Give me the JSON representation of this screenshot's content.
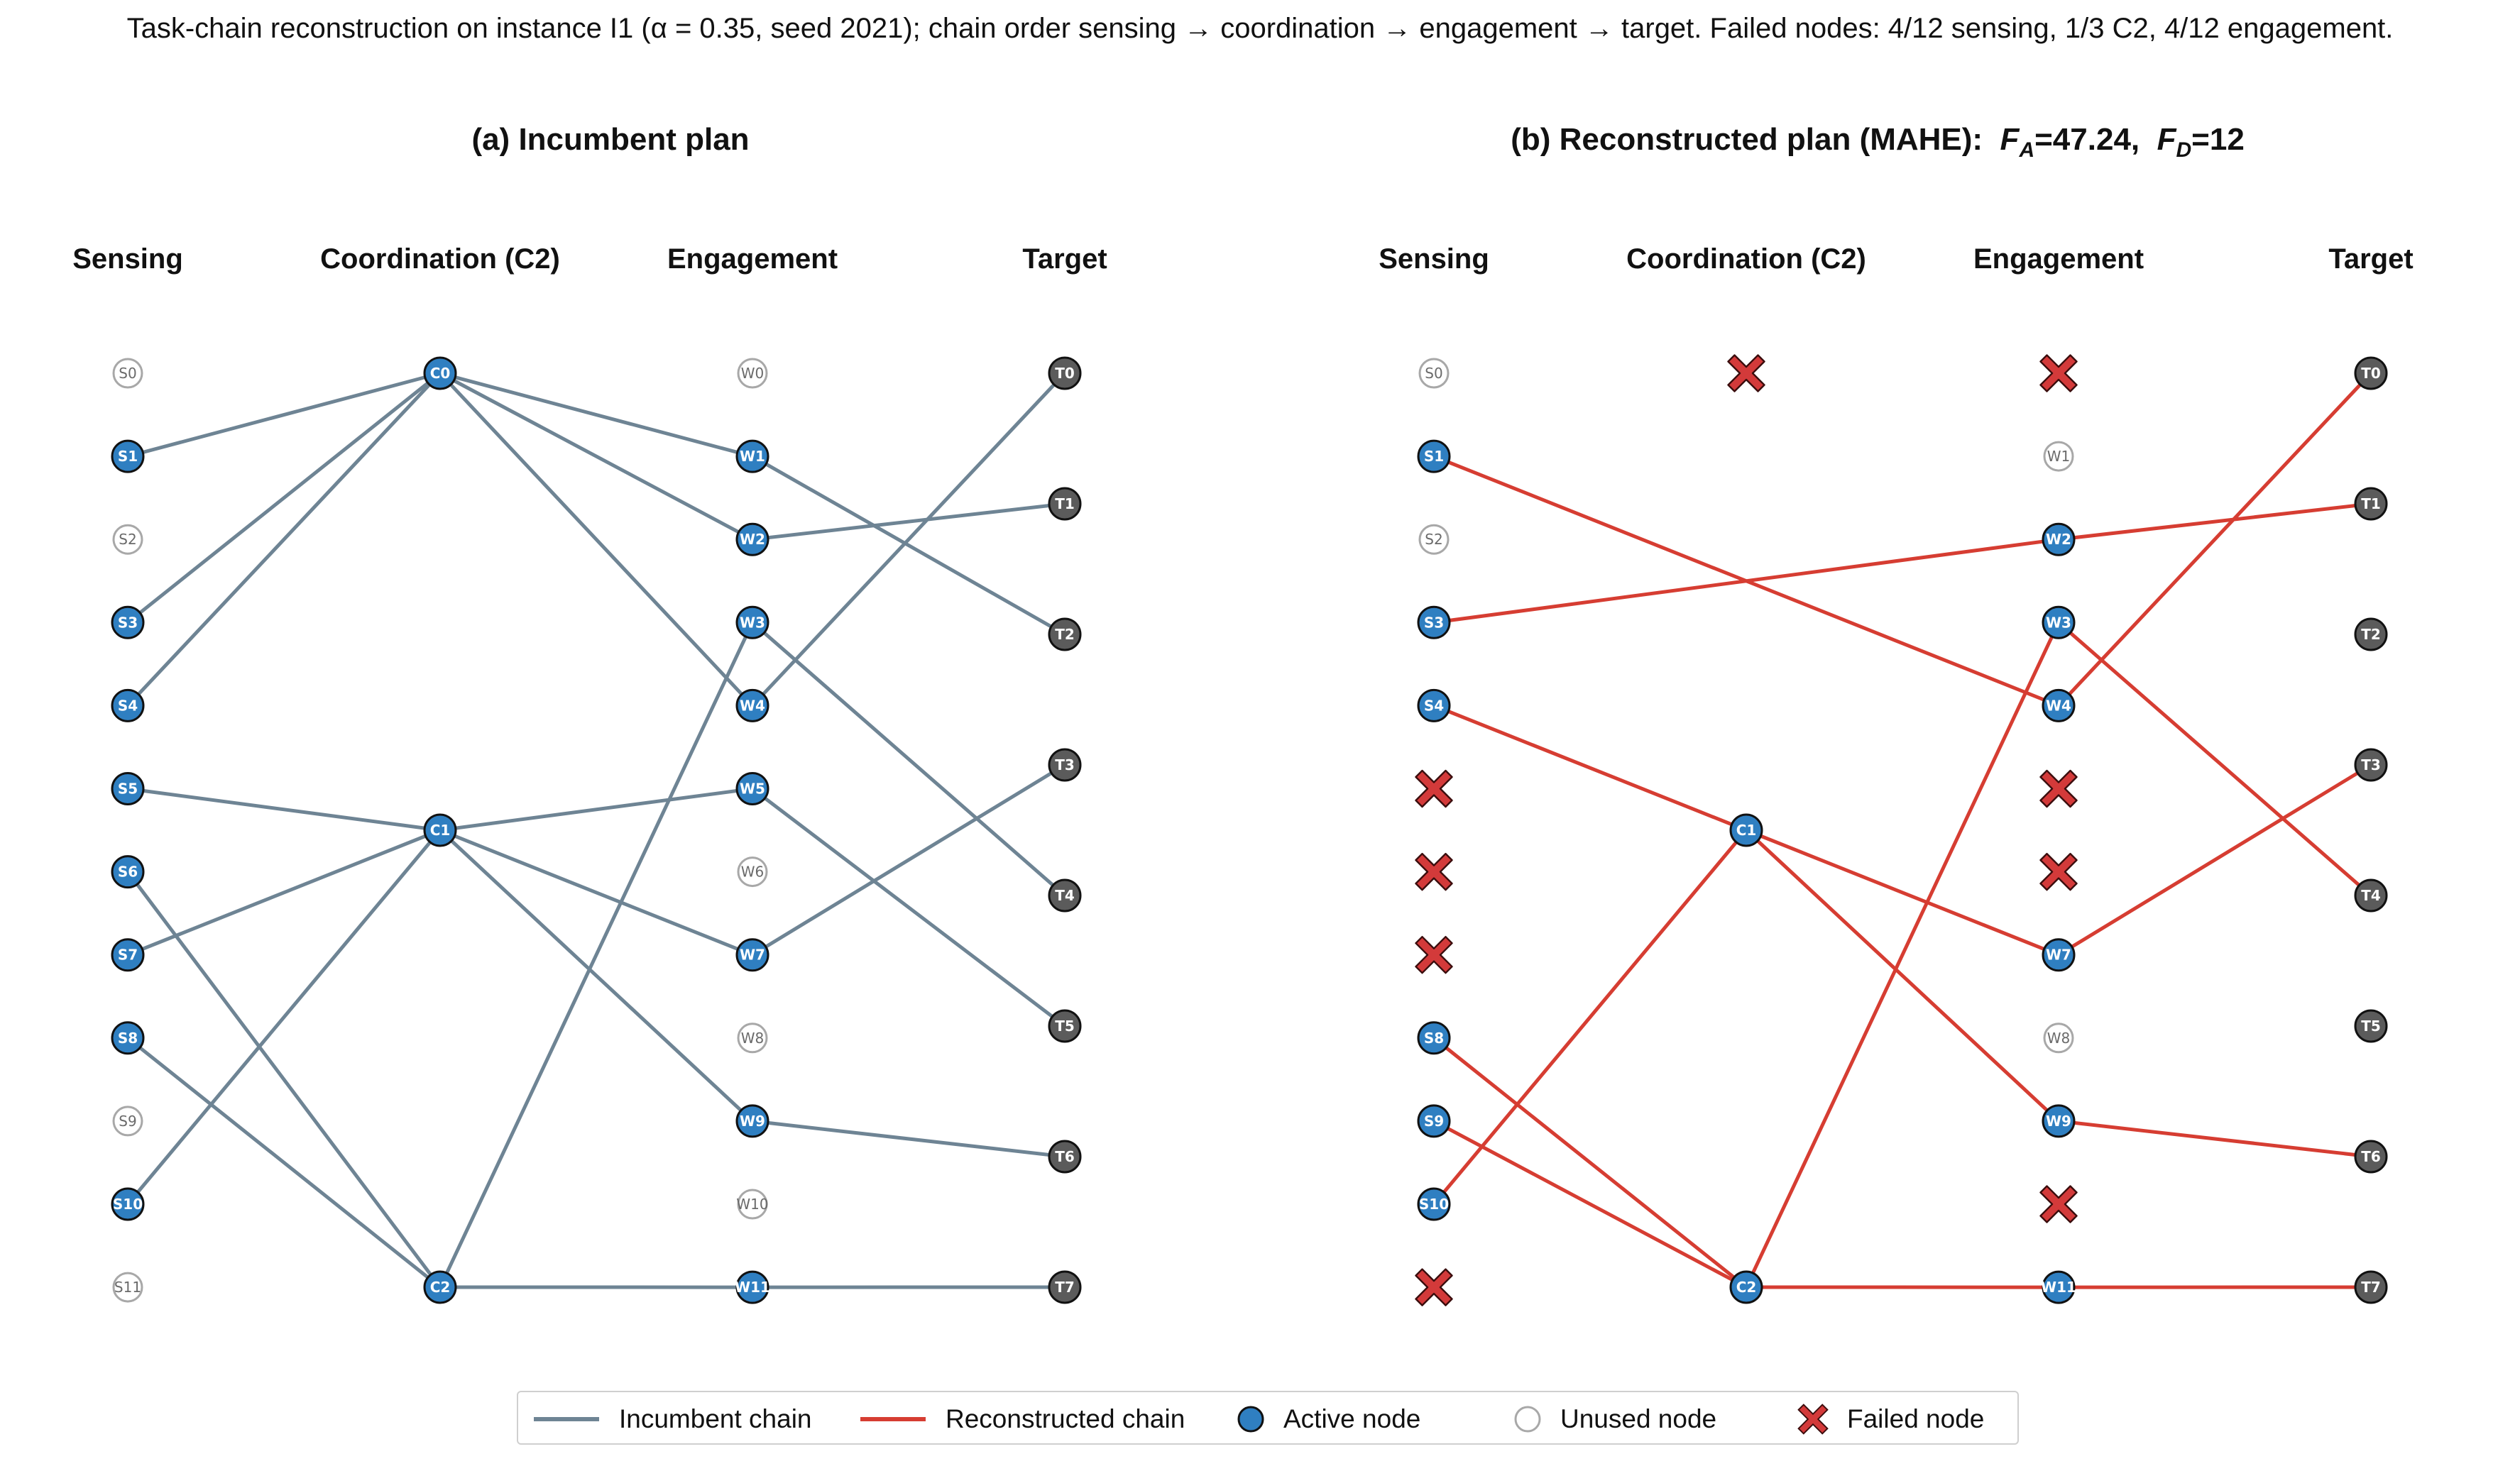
{
  "caption": "Task-chain reconstruction on instance I1 (α = 0.35, seed 2021); chain order sensing → coordination → engagement → target.  Failed nodes: 4/12 sensing, 1/3 C2, 4/12 engagement.",
  "colors": {
    "incumbent": "#6e8494",
    "reconstructed": "#d63d32",
    "active": "#2f7fc1",
    "target": "#5b5b5b",
    "unused_stroke": "#a8a8a8",
    "failed": "#d33a3a"
  },
  "panels": [
    {
      "id": "a",
      "title": "(a) Incumbent plan",
      "columns": [
        "Sensing",
        "Coordination (C2)",
        "Engagement",
        "Target"
      ],
      "sensing": {
        "labels": [
          "S0",
          "S1",
          "S2",
          "S3",
          "S4",
          "S5",
          "S6",
          "S7",
          "S8",
          "S9",
          "S10",
          "S11"
        ],
        "states": [
          "unused",
          "active",
          "unused",
          "active",
          "active",
          "active",
          "active",
          "active",
          "active",
          "unused",
          "active",
          "unused"
        ]
      },
      "coordination": {
        "labels": [
          "C0",
          "C1",
          "C2"
        ],
        "states": [
          "active",
          "active",
          "active"
        ]
      },
      "engagement": {
        "labels": [
          "W0",
          "W1",
          "W2",
          "W3",
          "W4",
          "W5",
          "W6",
          "W7",
          "W8",
          "W9",
          "W10",
          "W11"
        ],
        "states": [
          "unused",
          "active",
          "active",
          "active",
          "active",
          "active",
          "unused",
          "active",
          "unused",
          "active",
          "unused",
          "active"
        ]
      },
      "target": {
        "labels": [
          "T0",
          "T1",
          "T2",
          "T3",
          "T4",
          "T5",
          "T6",
          "T7"
        ],
        "states": [
          "target",
          "target",
          "target",
          "target",
          "target",
          "target",
          "target",
          "target"
        ]
      },
      "edge_style": "incumbent",
      "edges": [
        [
          "S1",
          "C0"
        ],
        [
          "S3",
          "C0"
        ],
        [
          "S4",
          "C0"
        ],
        [
          "S5",
          "C1"
        ],
        [
          "S7",
          "C1"
        ],
        [
          "S6",
          "C2"
        ],
        [
          "S8",
          "C2"
        ],
        [
          "S10",
          "C1"
        ],
        [
          "C0",
          "W1"
        ],
        [
          "C0",
          "W2"
        ],
        [
          "C0",
          "W4"
        ],
        [
          "C1",
          "W5"
        ],
        [
          "C1",
          "W7"
        ],
        [
          "C1",
          "W9"
        ],
        [
          "C2",
          "W3"
        ],
        [
          "C2",
          "W11"
        ],
        [
          "W1",
          "T2"
        ],
        [
          "W2",
          "T1"
        ],
        [
          "W3",
          "T4"
        ],
        [
          "W4",
          "T0"
        ],
        [
          "W5",
          "T5"
        ],
        [
          "W7",
          "T3"
        ],
        [
          "W9",
          "T6"
        ],
        [
          "W11",
          "T7"
        ]
      ]
    },
    {
      "id": "b",
      "title_prefix": "(b) Reconstructed plan (MAHE):",
      "fa_symbol": "F",
      "fa_sub": "A",
      "fa_value": "=47.24,",
      "fd_symbol": "F",
      "fd_sub": "D",
      "fd_value": "=12",
      "columns": [
        "Sensing",
        "Coordination (C2)",
        "Engagement",
        "Target"
      ],
      "sensing": {
        "labels": [
          "S0",
          "S1",
          "S2",
          "S3",
          "S4",
          "S5",
          "S6",
          "S7",
          "S8",
          "S9",
          "S10",
          "S11"
        ],
        "states": [
          "unused",
          "active",
          "unused",
          "active",
          "active",
          "failed",
          "failed",
          "failed",
          "active",
          "active",
          "active",
          "failed"
        ]
      },
      "coordination": {
        "labels": [
          "C0",
          "C1",
          "C2"
        ],
        "states": [
          "failed",
          "active",
          "active"
        ]
      },
      "engagement": {
        "labels": [
          "W0",
          "W1",
          "W2",
          "W3",
          "W4",
          "W5",
          "W6",
          "W7",
          "W8",
          "W9",
          "W10",
          "W11"
        ],
        "states": [
          "failed",
          "unused",
          "active",
          "active",
          "active",
          "failed",
          "failed",
          "active",
          "unused",
          "active",
          "failed",
          "active"
        ]
      },
      "target": {
        "labels": [
          "T0",
          "T1",
          "T2",
          "T3",
          "T4",
          "T5",
          "T6",
          "T7"
        ],
        "states": [
          "target",
          "target",
          "target",
          "target",
          "target",
          "target",
          "target",
          "target"
        ]
      },
      "edge_style": "reconstructed",
      "edges": [
        [
          "S1",
          "W4"
        ],
        [
          "S3",
          "W2"
        ],
        [
          "S4",
          "C1"
        ],
        [
          "S8",
          "C2"
        ],
        [
          "S9",
          "C2"
        ],
        [
          "S10",
          "C1"
        ],
        [
          "C1",
          "W7"
        ],
        [
          "C1",
          "W9"
        ],
        [
          "C2",
          "W3"
        ],
        [
          "C2",
          "W11"
        ],
        [
          "W2",
          "T1"
        ],
        [
          "W3",
          "T4"
        ],
        [
          "W4",
          "T0"
        ],
        [
          "W7",
          "T3"
        ],
        [
          "W9",
          "T6"
        ],
        [
          "W11",
          "T7"
        ]
      ]
    }
  ],
  "legend": {
    "incumbent_label": "Incumbent chain",
    "reconstructed_label": "Reconstructed chain",
    "active_label": "Active node",
    "unused_label": "Unused node",
    "failed_label": "Failed node"
  }
}
